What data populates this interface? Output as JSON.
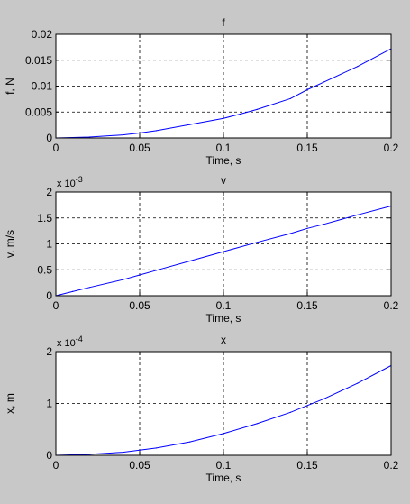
{
  "chart_data": [
    {
      "type": "line",
      "title": "f",
      "xlabel": "Time, s",
      "ylabel": "f, N",
      "exponent_label": "",
      "xlim": [
        0,
        0.2
      ],
      "ylim": [
        0,
        0.02
      ],
      "xticks": [
        "0",
        "0.05",
        "0.1",
        "0.15",
        "0.2"
      ],
      "yticks": [
        "0",
        "0.005",
        "0.01",
        "0.015",
        "0.02"
      ],
      "grid": true,
      "series": [
        {
          "color": "#0000ff",
          "x": [
            0,
            0.02,
            0.04,
            0.05,
            0.06,
            0.08,
            0.1,
            0.11,
            0.12,
            0.14,
            0.15,
            0.16,
            0.18,
            0.2
          ],
          "y": [
            0,
            0.00018,
            0.0006,
            0.00095,
            0.0014,
            0.0026,
            0.0038,
            0.0046,
            0.0055,
            0.0076,
            0.0093,
            0.0108,
            0.0138,
            0.0172
          ]
        }
      ]
    },
    {
      "type": "line",
      "title": "v",
      "xlabel": "Time, s",
      "ylabel": "v, m/s",
      "exponent_label": "x 10",
      "exponent_power": "-3",
      "xlim": [
        0,
        0.2
      ],
      "ylim": [
        0,
        2
      ],
      "xticks": [
        "0",
        "0.05",
        "0.1",
        "0.15",
        "0.2"
      ],
      "yticks": [
        "0",
        "0.5",
        "1",
        "1.5",
        "2"
      ],
      "grid": true,
      "series": [
        {
          "color": "#0000ff",
          "x": [
            0,
            0.01,
            0.02,
            0.04,
            0.05,
            0.06,
            0.08,
            0.1,
            0.12,
            0.14,
            0.15,
            0.16,
            0.18,
            0.2
          ],
          "y": [
            0,
            0.08,
            0.16,
            0.31,
            0.4,
            0.49,
            0.67,
            0.85,
            1.03,
            1.2,
            1.3,
            1.38,
            1.56,
            1.73
          ]
        }
      ]
    },
    {
      "type": "line",
      "title": "x",
      "xlabel": "Time, s",
      "ylabel": "x, m",
      "exponent_label": "x 10",
      "exponent_power": "-4",
      "xlim": [
        0,
        0.2
      ],
      "ylim": [
        0,
        2
      ],
      "xticks": [
        "0",
        "0.05",
        "0.1",
        "0.15",
        "0.2"
      ],
      "yticks": [
        "0",
        "1",
        "2"
      ],
      "grid": true,
      "series": [
        {
          "color": "#0000ff",
          "x": [
            0,
            0.02,
            0.04,
            0.05,
            0.06,
            0.08,
            0.1,
            0.12,
            0.14,
            0.15,
            0.16,
            0.18,
            0.2
          ],
          "y": [
            0,
            0.02,
            0.06,
            0.1,
            0.14,
            0.26,
            0.42,
            0.61,
            0.83,
            0.96,
            1.09,
            1.39,
            1.73
          ]
        }
      ]
    }
  ]
}
